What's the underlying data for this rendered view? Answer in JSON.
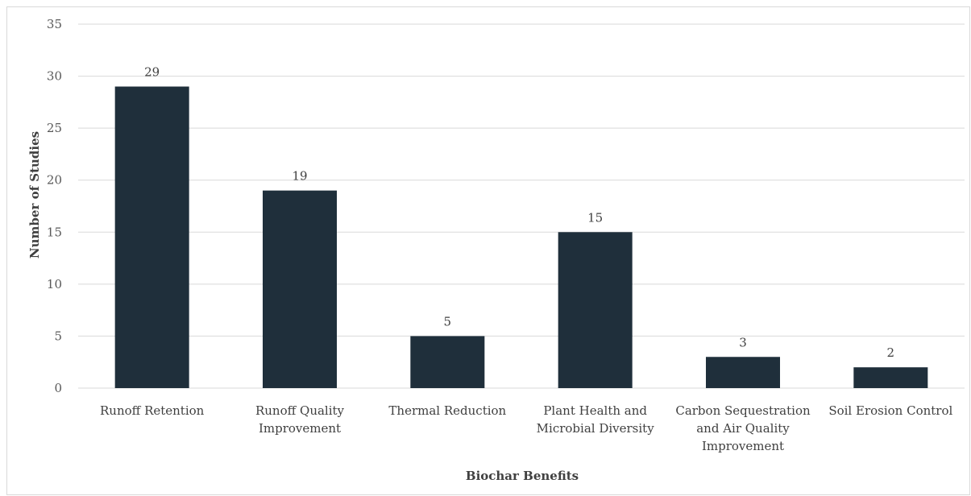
{
  "chart_data": {
    "type": "bar",
    "title": "",
    "xlabel": "Biochar Benefits",
    "ylabel": "Number of Studies",
    "categories": [
      [
        "Runoff Retention"
      ],
      [
        "Runoff Quality",
        "Improvement"
      ],
      [
        "Thermal Reduction"
      ],
      [
        "Plant Health and",
        "Microbial Diversity"
      ],
      [
        "Carbon Sequestration",
        "and Air Quality",
        "Improvement"
      ],
      [
        "Soil Erosion Control"
      ]
    ],
    "values": [
      29,
      19,
      5,
      15,
      3,
      2
    ],
    "ylim": [
      0,
      35
    ],
    "yticks": [
      0,
      5,
      10,
      15,
      20,
      25,
      30,
      35
    ],
    "grid": true,
    "legend": "none",
    "colors": {
      "bar": "#1f2f3b",
      "grid": "#d9d9d9",
      "axis": "#d9d9d9"
    }
  }
}
